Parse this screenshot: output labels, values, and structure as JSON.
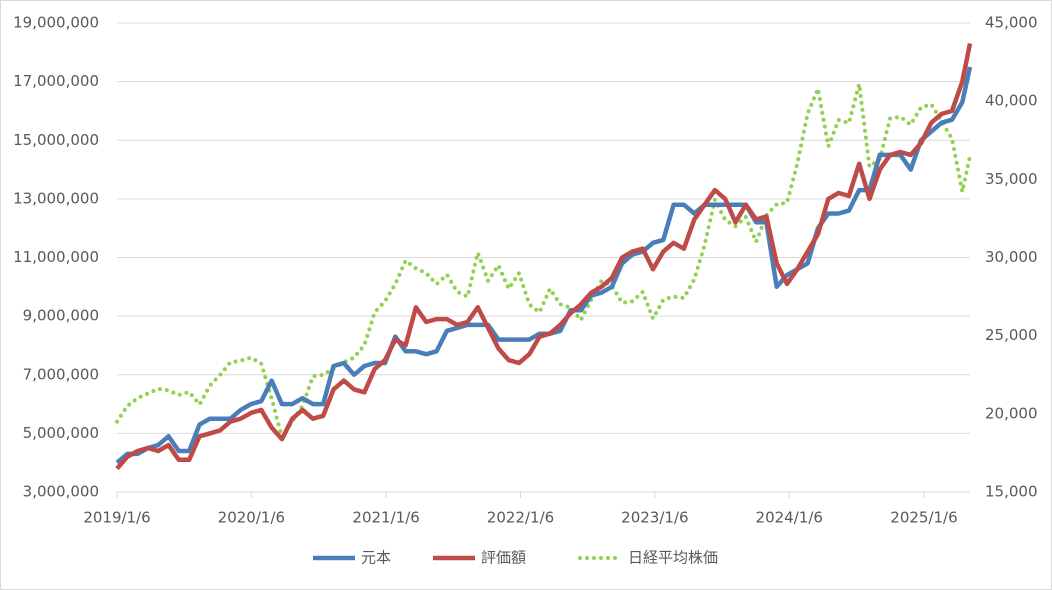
{
  "chart_data": {
    "type": "line",
    "x": [
      "2019/1/6",
      "2019/2/3",
      "2019/3/3",
      "2019/3/31",
      "2019/4/28",
      "2019/5/26",
      "2019/6/23",
      "2019/7/21",
      "2019/8/18",
      "2019/9/15",
      "2019/10/13",
      "2019/11/10",
      "2019/12/8",
      "2020/1/5",
      "2020/2/2",
      "2020/3/1",
      "2020/3/29",
      "2020/4/26",
      "2020/5/24",
      "2020/6/21",
      "2020/7/19",
      "2020/8/16",
      "2020/9/13",
      "2020/10/11",
      "2020/11/8",
      "2020/12/6",
      "2021/1/3",
      "2021/1/31",
      "2021/2/28",
      "2021/3/28",
      "2021/4/25",
      "2021/5/23",
      "2021/6/20",
      "2021/7/18",
      "2021/8/15",
      "2021/9/12",
      "2021/10/10",
      "2021/11/7",
      "2021/12/5",
      "2022/1/2",
      "2022/1/30",
      "2022/2/27",
      "2022/3/27",
      "2022/4/24",
      "2022/5/22",
      "2022/6/19",
      "2022/7/17",
      "2022/8/14",
      "2022/9/11",
      "2022/10/9",
      "2022/11/6",
      "2022/12/4",
      "2023/1/1",
      "2023/1/29",
      "2023/2/26",
      "2023/3/26",
      "2023/4/23",
      "2023/5/21",
      "2023/6/18",
      "2023/7/16",
      "2023/8/13",
      "2023/9/10",
      "2023/10/8",
      "2023/11/5",
      "2023/12/3",
      "2023/12/31",
      "2024/1/28",
      "2024/2/25",
      "2024/3/24",
      "2024/4/21",
      "2024/5/19",
      "2024/6/16",
      "2024/7/14",
      "2024/8/11",
      "2024/9/8",
      "2024/10/6",
      "2024/11/3",
      "2024/12/1",
      "2024/12/29",
      "2025/1/26",
      "2025/2/23",
      "2025/3/23",
      "2025/4/20",
      "2025/5/11"
    ],
    "series": [
      {
        "name": "元本",
        "color": "#4a7ebb",
        "style": "solid",
        "values": [
          4000000,
          4300000,
          4300000,
          4500000,
          4600000,
          4900000,
          4400000,
          4400000,
          5300000,
          5500000,
          5500000,
          5500000,
          5800000,
          6000000,
          6100000,
          6800000,
          6000000,
          6000000,
          6200000,
          6000000,
          6000000,
          7300000,
          7400000,
          7000000,
          7300000,
          7400000,
          7400000,
          8300000,
          7800000,
          7800000,
          7700000,
          7800000,
          8500000,
          8600000,
          8700000,
          8700000,
          8700000,
          8200000,
          8200000,
          8200000,
          8200000,
          8400000,
          8400000,
          8500000,
          9200000,
          9200000,
          9700000,
          9800000,
          10000000,
          10800000,
          11100000,
          11200000,
          11500000,
          11600000,
          12800000,
          12800000,
          12500000,
          12800000,
          12800000,
          12800000,
          12800000,
          12800000,
          12200000,
          12200000,
          10000000,
          10400000,
          10600000,
          10800000,
          12000000,
          12500000,
          12500000,
          12600000,
          13300000,
          13300000,
          14500000,
          14500000,
          14500000,
          14000000,
          15000000,
          15300000,
          15600000,
          15700000,
          16300000,
          17500000
        ]
      },
      {
        "name": "評価額",
        "color": "#be4b48",
        "style": "solid",
        "values": [
          3800000,
          4200000,
          4400000,
          4500000,
          4400000,
          4600000,
          4100000,
          4100000,
          4900000,
          5000000,
          5100000,
          5400000,
          5500000,
          5700000,
          5800000,
          5200000,
          4800000,
          5500000,
          5800000,
          5500000,
          5600000,
          6500000,
          6800000,
          6500000,
          6400000,
          7200000,
          7500000,
          8200000,
          8000000,
          9300000,
          8800000,
          8900000,
          8900000,
          8700000,
          8800000,
          9300000,
          8600000,
          7900000,
          7500000,
          7400000,
          7700000,
          8300000,
          8400000,
          8700000,
          9100000,
          9400000,
          9800000,
          10000000,
          10300000,
          11000000,
          11200000,
          11300000,
          10600000,
          11200000,
          11500000,
          11300000,
          12300000,
          12800000,
          13300000,
          13000000,
          12200000,
          12800000,
          12300000,
          12400000,
          10800000,
          10100000,
          10600000,
          11200000,
          11800000,
          13000000,
          13200000,
          13100000,
          14200000,
          13000000,
          14000000,
          14500000,
          14600000,
          14500000,
          14900000,
          15600000,
          15900000,
          16000000,
          17000000,
          18300000
        ]
      },
      {
        "name": "日経平均株価",
        "color": "#92d050",
        "style": "dotted",
        "axis": "y2",
        "values": [
          19500,
          20500,
          21000,
          21300,
          21600,
          21500,
          21200,
          21400,
          20600,
          21800,
          22500,
          23300,
          23400,
          23600,
          23200,
          21000,
          18500,
          19500,
          20500,
          22400,
          22500,
          22900,
          23300,
          23600,
          24400,
          26500,
          27200,
          28300,
          29800,
          29300,
          29000,
          28300,
          28900,
          27800,
          27500,
          30300,
          28500,
          29500,
          28000,
          29000,
          27000,
          26500,
          28000,
          27000,
          26800,
          26000,
          27300,
          28500,
          28200,
          27100,
          27200,
          27800,
          26100,
          27300,
          27500,
          27400,
          28600,
          30800,
          33700,
          32400,
          32000,
          32600,
          31000,
          32700,
          33400,
          33500,
          36000,
          39200,
          40800,
          37100,
          38800,
          38600,
          41100,
          35800,
          36300,
          38900,
          39000,
          38500,
          39600,
          39800,
          38700,
          37600,
          34200,
          36500
        ]
      }
    ],
    "xlim": [
      "2019/1/6",
      "2025/5/11"
    ],
    "xticks": [
      "2019/1/6",
      "2020/1/6",
      "2021/1/6",
      "2022/1/6",
      "2023/1/6",
      "2024/1/6",
      "2025/1/6"
    ],
    "ylim": [
      3000000,
      19000000
    ],
    "yticks": [
      {
        "value": 3000000,
        "label": "3,000,000"
      },
      {
        "value": 5000000,
        "label": "5,000,000"
      },
      {
        "value": 7000000,
        "label": "7,000,000"
      },
      {
        "value": 9000000,
        "label": "9,000,000"
      },
      {
        "value": 11000000,
        "label": "11,000,000"
      },
      {
        "value": 13000000,
        "label": "13,000,000"
      },
      {
        "value": 15000000,
        "label": "15,000,000"
      },
      {
        "value": 17000000,
        "label": "17,000,000"
      },
      {
        "value": 19000000,
        "label": "19,000,000"
      }
    ],
    "y2lim": [
      15000,
      45000
    ],
    "y2ticks": [
      {
        "value": 15000,
        "label": "15,000"
      },
      {
        "value": 20000,
        "label": "20,000"
      },
      {
        "value": 25000,
        "label": "25,000"
      },
      {
        "value": 30000,
        "label": "30,000"
      },
      {
        "value": 35000,
        "label": "35,000"
      },
      {
        "value": 40000,
        "label": "40,000"
      },
      {
        "value": 45000,
        "label": "45,000"
      }
    ],
    "grid": true,
    "legend": "bottom"
  }
}
